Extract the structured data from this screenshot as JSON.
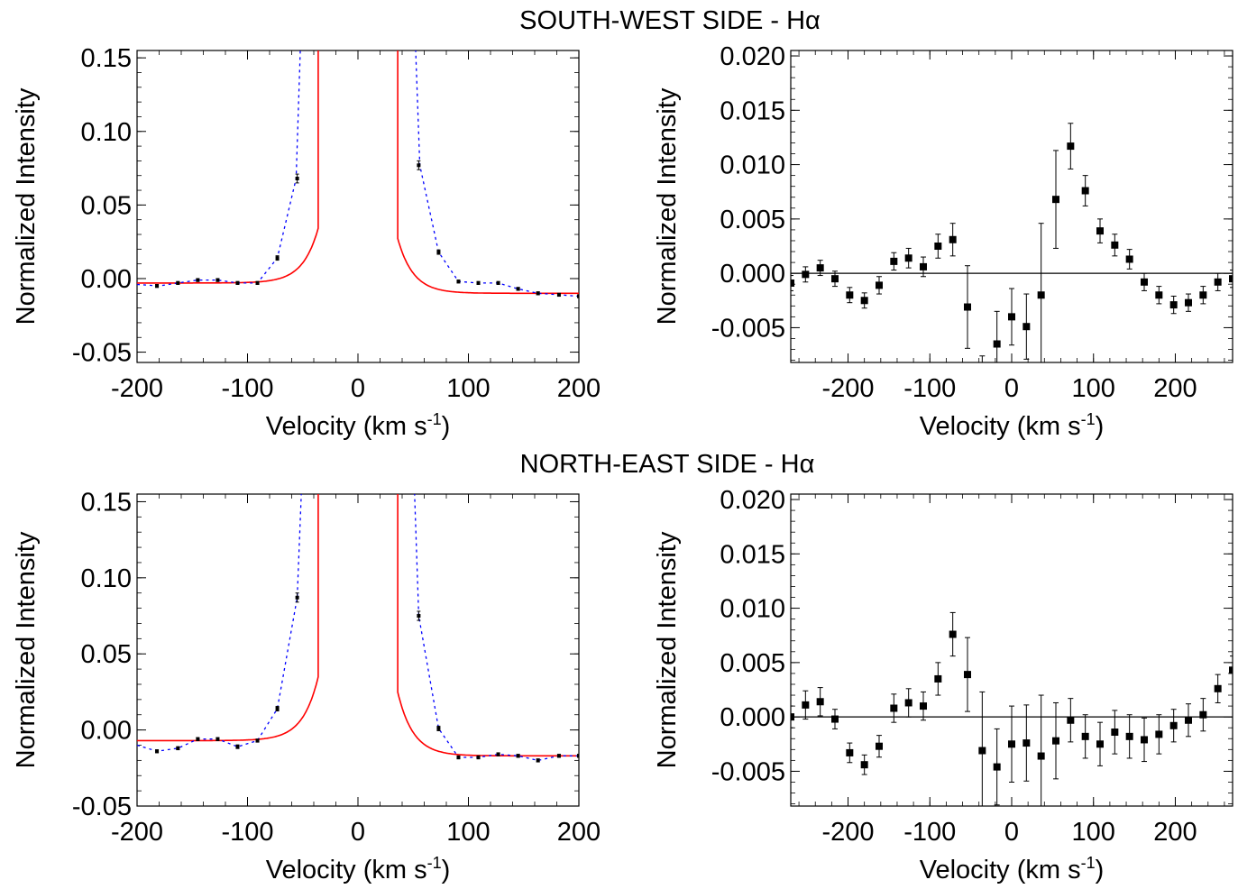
{
  "titles": {
    "top": "SOUTH-WEST SIDE - Hα",
    "bottom": "NORTH-EAST SIDE - Hα"
  },
  "colors": {
    "model": "#ff0000",
    "fit": "#0000ff",
    "points": "#000000"
  },
  "chart_data": [
    {
      "id": "sw-left",
      "type": "line",
      "xlabel": "Velocity (km s-1)",
      "ylabel": "Normalized Intensity",
      "xlim": [
        -200,
        200
      ],
      "ylim": [
        -0.057,
        0.155
      ],
      "xticks": [
        -200,
        -100,
        0,
        100,
        200
      ],
      "yticks": [
        -0.05,
        0.0,
        0.05,
        0.1,
        0.15
      ],
      "ytick_labels": [
        "-0.05",
        "0.00",
        "0.05",
        "0.10",
        "0.15"
      ],
      "zero_line": false,
      "series": [
        {
          "kind": "model",
          "curve": {
            "center": 0,
            "hw": 35,
            "plateau_left": -0.003,
            "plateau_right": -0.01,
            "amp": 0.04,
            "decay": 14
          }
        },
        {
          "kind": "fit",
          "x": [
            -200,
            -180,
            -163,
            -145,
            -127,
            -109,
            -91,
            -73,
            -56,
            -52,
            52,
            56,
            73,
            91,
            109,
            127,
            145,
            163,
            182,
            200
          ],
          "y": [
            -0.004,
            -0.005,
            -0.003,
            -0.001,
            -0.001,
            -0.003,
            -0.003,
            0.014,
            0.068,
            0.16,
            0.16,
            0.077,
            0.018,
            -0.002,
            -0.003,
            -0.003,
            -0.007,
            -0.01,
            -0.011,
            -0.012
          ]
        },
        {
          "kind": "points",
          "x": [
            -182,
            -163,
            -145,
            -127,
            -109,
            -91,
            -73,
            -55,
            55,
            73,
            91,
            109,
            127,
            145,
            163,
            182,
            200
          ],
          "y": [
            -0.005,
            -0.003,
            -0.001,
            -0.001,
            -0.003,
            -0.003,
            0.014,
            0.068,
            0.077,
            0.018,
            -0.002,
            -0.003,
            -0.003,
            -0.007,
            -0.01,
            -0.011,
            -0.012
          ],
          "err": [
            0.001,
            0.001,
            0.001,
            0.001,
            0.001,
            0.001,
            0.0015,
            0.003,
            0.003,
            0.0015,
            0.001,
            0.001,
            0.001,
            0.001,
            0.001,
            0.001,
            0.001
          ]
        }
      ]
    },
    {
      "id": "sw-right",
      "type": "scatter",
      "xlabel": "Velocity (km s-1)",
      "ylabel": "Normalized Intensity",
      "xlim": [
        -270,
        270
      ],
      "ylim": [
        -0.0082,
        0.0205
      ],
      "xticks": [
        -200,
        -100,
        0,
        100,
        200
      ],
      "yticks": [
        -0.005,
        0.0,
        0.005,
        0.01,
        0.015,
        0.02
      ],
      "ytick_labels": [
        "-0.005",
        "0.000",
        "0.005",
        "0.010",
        "0.015",
        "0.020"
      ],
      "zero_line": true,
      "series": [
        {
          "kind": "points",
          "x": [
            -270,
            -252,
            -234,
            -216,
            -198,
            -180,
            -162,
            -144,
            -126,
            -108,
            -90,
            -72,
            -54,
            -36,
            -18,
            0,
            18,
            36,
            54,
            72,
            90,
            108,
            126,
            144,
            162,
            180,
            198,
            216,
            234,
            252,
            270
          ],
          "y": [
            -0.0009,
            -0.0001,
            0.0005,
            -0.0005,
            -0.002,
            -0.0025,
            -0.0011,
            0.0011,
            0.0014,
            0.0006,
            0.0025,
            0.0031,
            -0.0031,
            -0.0098,
            -0.0065,
            -0.004,
            -0.0049,
            -0.002,
            0.0068,
            0.0117,
            0.0076,
            0.0039,
            0.0026,
            0.0013,
            -0.0008,
            -0.002,
            -0.0029,
            -0.0027,
            -0.002,
            -0.0008,
            -0.0005
          ],
          "err": [
            0.0007,
            0.0007,
            0.0007,
            0.0007,
            0.0007,
            0.0007,
            0.0008,
            0.0008,
            0.0009,
            0.0009,
            0.0011,
            0.0015,
            0.0038,
            0.0022,
            0.003,
            0.0026,
            0.003,
            0.0066,
            0.0045,
            0.0021,
            0.0014,
            0.0011,
            0.001,
            0.0009,
            0.0008,
            0.0008,
            0.0008,
            0.0008,
            0.0008,
            0.0008,
            0.0008
          ]
        }
      ]
    },
    {
      "id": "ne-left",
      "type": "line",
      "xlabel": "Velocity (km s-1)",
      "ylabel": "Normalized Intensity",
      "xlim": [
        -200,
        200
      ],
      "ylim": [
        -0.05,
        0.155
      ],
      "xticks": [
        -200,
        -100,
        0,
        100,
        200
      ],
      "yticks": [
        -0.05,
        0.0,
        0.05,
        0.1,
        0.15
      ],
      "ytick_labels": [
        "-0.05",
        "0.00",
        "0.05",
        "0.10",
        "0.15"
      ],
      "zero_line": false,
      "series": [
        {
          "kind": "model",
          "curve": {
            "center": 0,
            "hw": 35,
            "plateau_left": -0.007,
            "plateau_right": -0.017,
            "amp": 0.045,
            "decay": 14
          }
        },
        {
          "kind": "fit",
          "x": [
            -200,
            -182,
            -163,
            -145,
            -127,
            -109,
            -91,
            -73,
            -55,
            -51,
            51,
            55,
            73,
            91,
            109,
            127,
            145,
            163,
            182,
            200
          ],
          "y": [
            -0.01,
            -0.014,
            -0.012,
            -0.006,
            -0.006,
            -0.011,
            -0.007,
            0.014,
            0.087,
            0.16,
            0.16,
            0.075,
            0.001,
            -0.018,
            -0.018,
            -0.016,
            -0.017,
            -0.02,
            -0.017,
            -0.017
          ]
        },
        {
          "kind": "points",
          "x": [
            -182,
            -163,
            -145,
            -127,
            -109,
            -91,
            -73,
            -55,
            55,
            73,
            91,
            109,
            127,
            145,
            163,
            182,
            200
          ],
          "y": [
            -0.014,
            -0.012,
            -0.006,
            -0.006,
            -0.011,
            -0.007,
            0.014,
            0.087,
            0.075,
            0.001,
            -0.018,
            -0.018,
            -0.016,
            -0.017,
            -0.02,
            -0.017,
            -0.017
          ],
          "err": [
            0.001,
            0.001,
            0.001,
            0.001,
            0.0012,
            0.001,
            0.0015,
            0.003,
            0.003,
            0.0015,
            0.001,
            0.001,
            0.001,
            0.001,
            0.001,
            0.001,
            0.001
          ]
        }
      ]
    },
    {
      "id": "ne-right",
      "type": "scatter",
      "xlabel": "Velocity (km s-1)",
      "ylabel": "Normalized Intensity",
      "xlim": [
        -270,
        270
      ],
      "ylim": [
        -0.0082,
        0.0205
      ],
      "xticks": [
        -200,
        -100,
        0,
        100,
        200
      ],
      "yticks": [
        -0.005,
        0.0,
        0.005,
        0.01,
        0.015,
        0.02
      ],
      "ytick_labels": [
        "-0.005",
        "0.000",
        "0.005",
        "0.010",
        "0.015",
        "0.020"
      ],
      "zero_line": true,
      "series": [
        {
          "kind": "points",
          "x": [
            -270,
            -252,
            -234,
            -216,
            -198,
            -180,
            -162,
            -144,
            -126,
            -108,
            -90,
            -72,
            -54,
            -36,
            -18,
            0,
            18,
            36,
            54,
            72,
            90,
            108,
            126,
            144,
            162,
            180,
            198,
            216,
            234,
            252,
            270
          ],
          "y": [
            0.0,
            0.0011,
            0.0014,
            -0.0002,
            -0.0033,
            -0.0044,
            -0.0027,
            0.0008,
            0.0013,
            0.001,
            0.0035,
            0.0076,
            0.0039,
            -0.0031,
            -0.0046,
            -0.0025,
            -0.0024,
            -0.0036,
            -0.0022,
            -0.0003,
            -0.0018,
            -0.0025,
            -0.0014,
            -0.0018,
            -0.0021,
            -0.0016,
            -0.0008,
            -0.0003,
            0.0002,
            0.0026,
            0.0043
          ],
          "err": [
            0.001,
            0.0013,
            0.0013,
            0.0009,
            0.0009,
            0.0009,
            0.001,
            0.0013,
            0.0013,
            0.0013,
            0.0015,
            0.002,
            0.0034,
            0.0054,
            0.0035,
            0.0035,
            0.0035,
            0.0056,
            0.0035,
            0.002,
            0.002,
            0.002,
            0.002,
            0.002,
            0.002,
            0.0018,
            0.0015,
            0.0015,
            0.0015,
            0.0013,
            0.0013
          ]
        }
      ]
    }
  ]
}
